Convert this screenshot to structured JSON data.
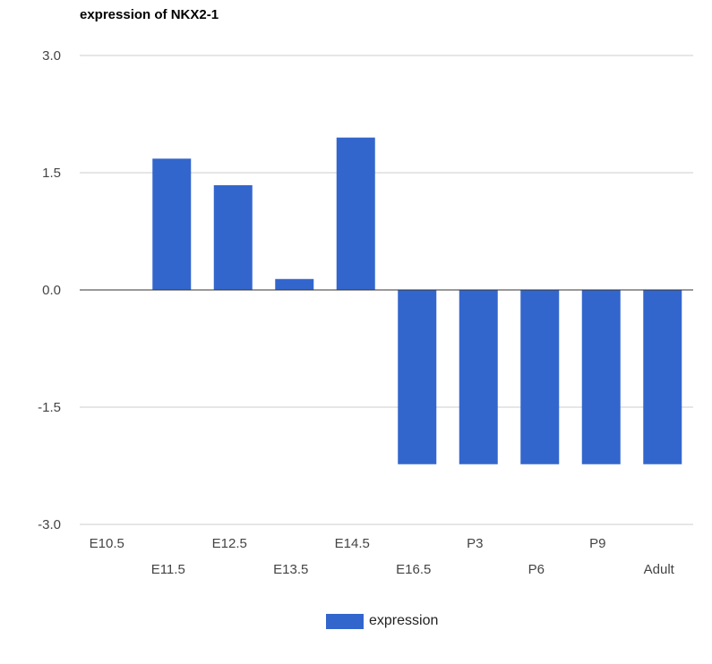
{
  "chart_data": {
    "type": "bar",
    "title": "expression of NKX2-1",
    "categories": [
      "E10.5",
      "E11.5",
      "E12.5",
      "E13.5",
      "E14.5",
      "E16.5",
      "P3",
      "P6",
      "P9",
      "Adult"
    ],
    "series": [
      {
        "name": "expression",
        "values": [
          0.0,
          1.68,
          1.34,
          0.14,
          1.95,
          -2.23,
          -2.23,
          -2.23,
          -2.23,
          -2.23
        ]
      }
    ],
    "y_ticks": [
      "3.0",
      "1.5",
      "0.0",
      "-1.5",
      "-3.0"
    ],
    "ylim": [
      -3.0,
      3.0
    ],
    "grid": true,
    "legend_position": "bottom",
    "bar_color": "#3366cc",
    "grid_color": "#cccccc",
    "baseline_color": "#333333"
  }
}
